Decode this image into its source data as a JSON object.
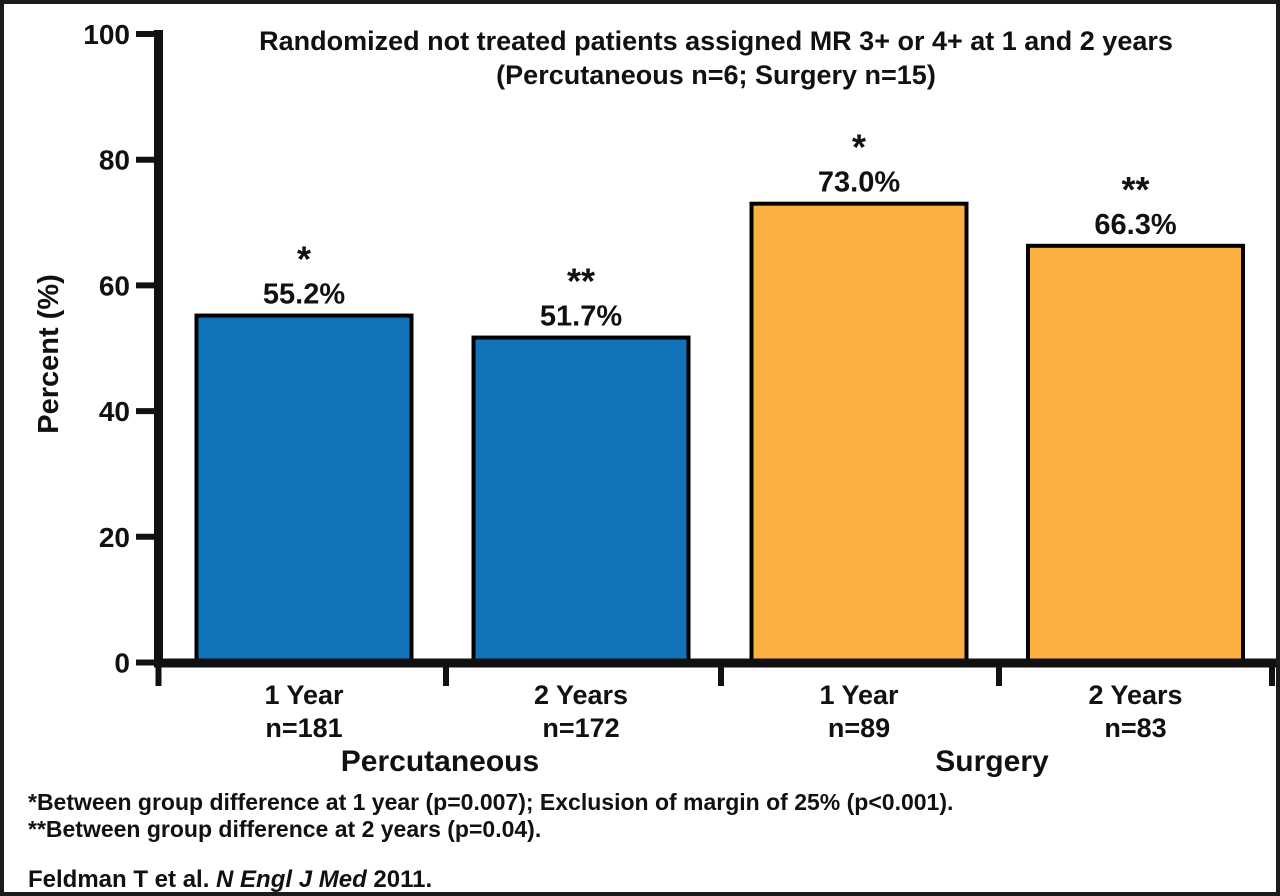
{
  "figure": {
    "title_line1": "Randomized not treated patients assigned MR 3+ or 4+ at 1 and 2 years",
    "title_line2": "(Percutaneous n=6; Surgery n=15)"
  },
  "chart_data": {
    "type": "bar",
    "title": "Randomized not treated patients assigned MR 3+ or 4+ at 1 and 2 years (Percutaneous n=6; Surgery n=15)",
    "xlabel": "",
    "ylabel": "Percent (%)",
    "ylim": [
      0,
      100
    ],
    "yticks": [
      0,
      20,
      40,
      60,
      80,
      100
    ],
    "ytick_labels": [
      "0",
      "20",
      "40",
      "60",
      "80",
      "100"
    ],
    "grid": false,
    "legend": "none",
    "group_labels": [
      "Percutaneous",
      "Surgery"
    ],
    "bars": [
      {
        "group": "Percutaneous",
        "period": "1 Year",
        "n_label": "n=181",
        "value": 55.2,
        "value_label": "55.2%",
        "star": "*",
        "color": "#1173B9"
      },
      {
        "group": "Percutaneous",
        "period": "2 Years",
        "n_label": "n=172",
        "value": 51.7,
        "value_label": "51.7%",
        "star": "**",
        "color": "#1173B9"
      },
      {
        "group": "Surgery",
        "period": "1 Year",
        "n_label": "n=89",
        "value": 73.0,
        "value_label": "73.0%",
        "star": "*",
        "color": "#FBB041"
      },
      {
        "group": "Surgery",
        "period": "2 Years",
        "n_label": "n=83",
        "value": 66.3,
        "value_label": "66.3%",
        "star": "**",
        "color": "#FBB041"
      }
    ],
    "colors": {
      "percutaneous": "#1173B9",
      "surgery": "#FBB041",
      "axis": "#111111",
      "text": "#111111"
    }
  },
  "footnotes": {
    "line1": "*Between group difference at 1 year (p=0.007); Exclusion of margin of 25% (p<0.001).",
    "line2": "**Between group difference at 2 years (p=0.04)."
  },
  "citation": {
    "prefix": "Feldman T et al. ",
    "journal": "N Engl J Med",
    "suffix": " 2011."
  }
}
